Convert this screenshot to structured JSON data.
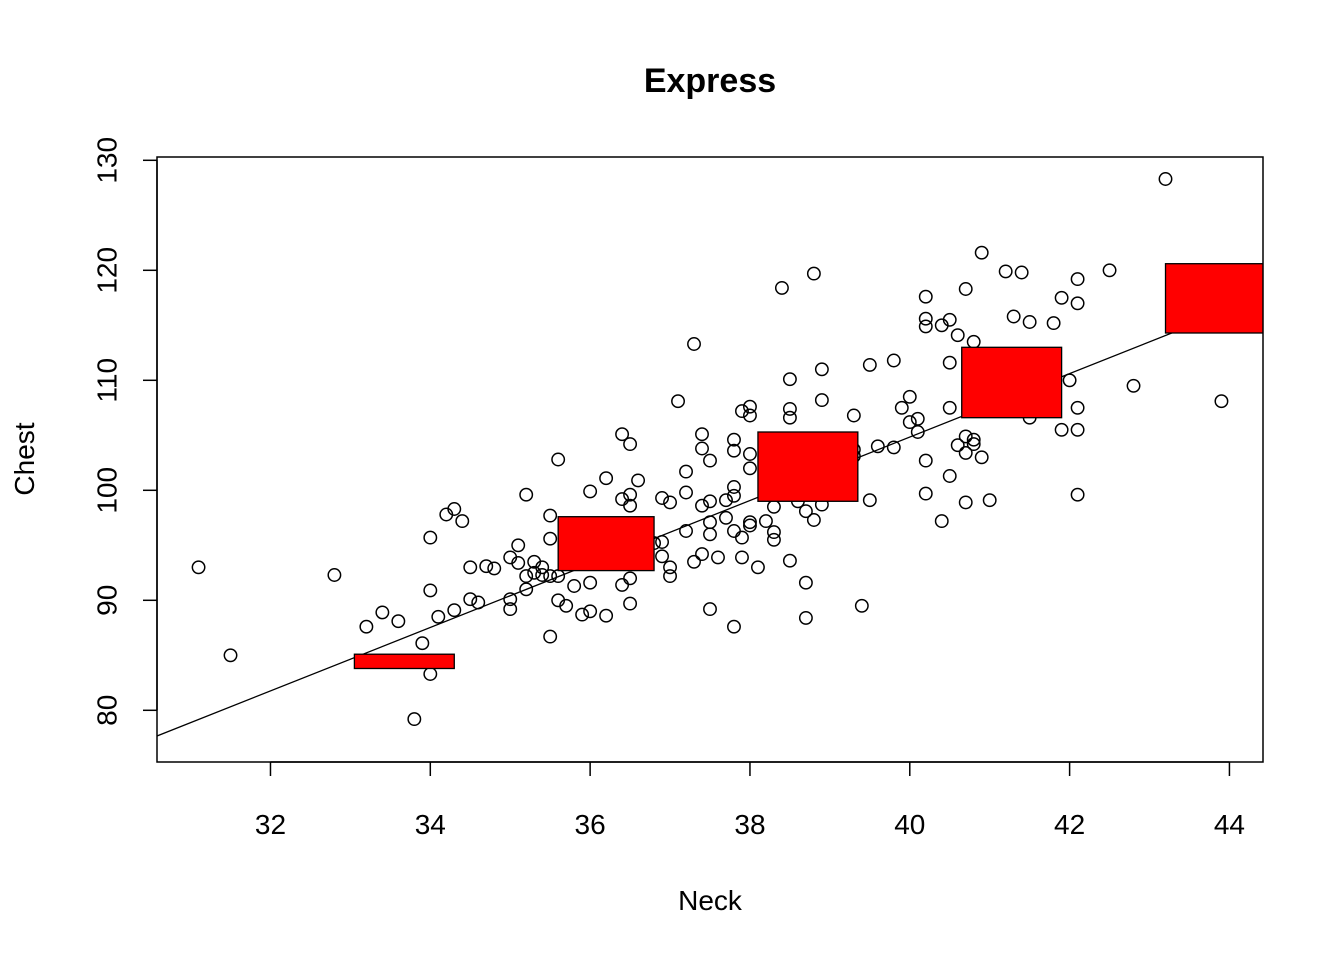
{
  "chart_data": {
    "type": "scatter",
    "title": "Express",
    "xlabel": "Neck",
    "ylabel": "Chest",
    "xlim": [
      30.58,
      44.42
    ],
    "ylim": [
      75.3,
      130.3
    ],
    "x_ticks": [
      32,
      34,
      36,
      38,
      40,
      42,
      44
    ],
    "y_ticks": [
      80,
      90,
      100,
      110,
      120,
      130
    ],
    "x_tick_labels": [
      "32",
      "34",
      "36",
      "38",
      "40",
      "42",
      "44"
    ],
    "y_tick_labels": [
      "80",
      "90",
      "100",
      "110",
      "120",
      "130"
    ],
    "grid": false,
    "point_style": "open-circle",
    "point_color": "#000000",
    "regression_line": {
      "intercept": -10.56,
      "slope": 2.885
    },
    "rect_color": "#ff0000",
    "bins": [
      {
        "x_range": [
          33.05,
          34.3
        ],
        "y_range": [
          83.8,
          85.1
        ]
      },
      {
        "x_range": [
          35.6,
          36.8
        ],
        "y_range": [
          92.7,
          97.6
        ]
      },
      {
        "x_range": [
          38.1,
          39.35
        ],
        "y_range": [
          99.0,
          105.3
        ]
      },
      {
        "x_range": [
          40.65,
          41.9
        ],
        "y_range": [
          106.6,
          113.0
        ]
      },
      {
        "x_range": [
          43.2,
          44.45
        ],
        "y_range": [
          114.3,
          120.6
        ]
      }
    ],
    "points": [
      [
        31.1,
        93.0
      ],
      [
        31.5,
        85.0
      ],
      [
        32.8,
        92.3
      ],
      [
        33.2,
        87.6
      ],
      [
        33.4,
        88.9
      ],
      [
        33.6,
        88.1
      ],
      [
        33.8,
        79.2
      ],
      [
        33.9,
        86.1
      ],
      [
        34.0,
        83.3
      ],
      [
        34.0,
        90.9
      ],
      [
        34.0,
        95.7
      ],
      [
        34.1,
        88.5
      ],
      [
        34.2,
        97.8
      ],
      [
        34.3,
        98.3
      ],
      [
        34.3,
        89.1
      ],
      [
        34.4,
        97.2
      ],
      [
        34.5,
        90.1
      ],
      [
        34.5,
        93.0
      ],
      [
        34.6,
        89.8
      ],
      [
        34.7,
        93.1
      ],
      [
        34.8,
        92.9
      ],
      [
        35.0,
        90.1
      ],
      [
        35.0,
        89.2
      ],
      [
        35.0,
        93.9
      ],
      [
        35.1,
        95.0
      ],
      [
        35.1,
        93.4
      ],
      [
        35.2,
        99.6
      ],
      [
        35.2,
        92.2
      ],
      [
        35.2,
        91.0
      ],
      [
        35.3,
        92.5
      ],
      [
        35.3,
        93.5
      ],
      [
        35.4,
        92.3
      ],
      [
        35.4,
        93.0
      ],
      [
        35.5,
        86.7
      ],
      [
        35.5,
        95.6
      ],
      [
        35.5,
        97.7
      ],
      [
        35.5,
        92.2
      ],
      [
        35.6,
        102.8
      ],
      [
        35.6,
        90.0
      ],
      [
        35.6,
        92.2
      ],
      [
        35.7,
        89.5
      ],
      [
        35.8,
        91.3
      ],
      [
        35.9,
        88.7
      ],
      [
        36.0,
        91.6
      ],
      [
        36.0,
        89.0
      ],
      [
        36.0,
        99.9
      ],
      [
        36.2,
        88.6
      ],
      [
        36.2,
        101.1
      ],
      [
        36.3,
        96.0
      ],
      [
        36.4,
        99.2
      ],
      [
        36.4,
        105.1
      ],
      [
        36.4,
        91.4
      ],
      [
        36.5,
        104.2
      ],
      [
        36.5,
        98.6
      ],
      [
        36.5,
        99.6
      ],
      [
        36.5,
        92.0
      ],
      [
        36.5,
        89.7
      ],
      [
        36.6,
        100.9
      ],
      [
        36.7,
        95.6
      ],
      [
        36.8,
        95.2
      ],
      [
        36.9,
        99.3
      ],
      [
        36.9,
        94.0
      ],
      [
        36.9,
        95.3
      ],
      [
        37.0,
        93.0
      ],
      [
        37.0,
        92.2
      ],
      [
        37.0,
        98.9
      ],
      [
        37.1,
        108.1
      ],
      [
        37.2,
        96.3
      ],
      [
        37.2,
        99.8
      ],
      [
        37.2,
        101.7
      ],
      [
        37.3,
        113.3
      ],
      [
        37.3,
        93.5
      ],
      [
        37.4,
        105.1
      ],
      [
        37.4,
        98.6
      ],
      [
        37.4,
        103.8
      ],
      [
        37.4,
        94.2
      ],
      [
        37.5,
        89.2
      ],
      [
        37.5,
        96.0
      ],
      [
        37.5,
        97.1
      ],
      [
        37.5,
        99.0
      ],
      [
        37.5,
        102.7
      ],
      [
        37.6,
        93.9
      ],
      [
        37.7,
        99.1
      ],
      [
        37.7,
        97.5
      ],
      [
        37.8,
        87.6
      ],
      [
        37.8,
        96.3
      ],
      [
        37.8,
        100.3
      ],
      [
        37.8,
        103.6
      ],
      [
        37.8,
        104.6
      ],
      [
        37.8,
        99.5
      ],
      [
        37.9,
        107.2
      ],
      [
        37.9,
        93.9
      ],
      [
        37.9,
        95.7
      ],
      [
        38.0,
        106.8
      ],
      [
        38.0,
        107.6
      ],
      [
        38.0,
        102.0
      ],
      [
        38.0,
        103.3
      ],
      [
        38.0,
        97.1
      ],
      [
        38.0,
        96.8
      ],
      [
        38.1,
        93.0
      ],
      [
        38.2,
        97.2
      ],
      [
        38.3,
        95.5
      ],
      [
        38.3,
        96.2
      ],
      [
        38.3,
        98.5
      ],
      [
        38.4,
        118.4
      ],
      [
        38.5,
        93.6
      ],
      [
        38.5,
        110.1
      ],
      [
        38.5,
        107.4
      ],
      [
        38.5,
        106.6
      ],
      [
        38.6,
        99.0
      ],
      [
        38.7,
        88.4
      ],
      [
        38.7,
        91.6
      ],
      [
        38.7,
        98.1
      ],
      [
        38.8,
        119.7
      ],
      [
        38.8,
        97.3
      ],
      [
        38.9,
        108.2
      ],
      [
        38.9,
        111.0
      ],
      [
        38.9,
        98.7
      ],
      [
        39.3,
        106.8
      ],
      [
        39.3,
        103.7
      ],
      [
        39.3,
        103.1
      ],
      [
        39.4,
        89.5
      ],
      [
        39.5,
        111.4
      ],
      [
        39.5,
        99.1
      ],
      [
        39.6,
        104.0
      ],
      [
        39.8,
        111.8
      ],
      [
        39.8,
        103.9
      ],
      [
        39.9,
        107.5
      ],
      [
        40.0,
        108.5
      ],
      [
        40.0,
        106.2
      ],
      [
        40.1,
        105.3
      ],
      [
        40.1,
        106.5
      ],
      [
        40.2,
        117.6
      ],
      [
        40.2,
        115.6
      ],
      [
        40.2,
        114.9
      ],
      [
        40.2,
        102.7
      ],
      [
        40.2,
        99.7
      ],
      [
        40.4,
        115.0
      ],
      [
        40.4,
        97.2
      ],
      [
        40.5,
        115.5
      ],
      [
        40.5,
        111.6
      ],
      [
        40.5,
        107.5
      ],
      [
        40.5,
        101.3
      ],
      [
        40.6,
        114.1
      ],
      [
        40.6,
        104.1
      ],
      [
        40.7,
        118.3
      ],
      [
        40.7,
        104.9
      ],
      [
        40.7,
        103.4
      ],
      [
        40.7,
        98.9
      ],
      [
        40.8,
        104.6
      ],
      [
        40.8,
        104.2
      ],
      [
        40.8,
        113.5
      ],
      [
        40.9,
        121.6
      ],
      [
        40.9,
        103.0
      ],
      [
        41.0,
        99.1
      ],
      [
        41.2,
        119.9
      ],
      [
        41.3,
        115.8
      ],
      [
        41.4,
        119.8
      ],
      [
        41.5,
        115.3
      ],
      [
        41.5,
        106.6
      ],
      [
        41.8,
        115.2
      ],
      [
        41.9,
        117.5
      ],
      [
        41.9,
        105.5
      ],
      [
        42.0,
        110.0
      ],
      [
        42.1,
        119.2
      ],
      [
        42.1,
        117.0
      ],
      [
        42.1,
        107.5
      ],
      [
        42.1,
        105.5
      ],
      [
        42.1,
        99.6
      ],
      [
        42.5,
        120.0
      ],
      [
        42.8,
        109.5
      ],
      [
        43.2,
        128.3
      ],
      [
        43.9,
        108.1
      ]
    ]
  }
}
